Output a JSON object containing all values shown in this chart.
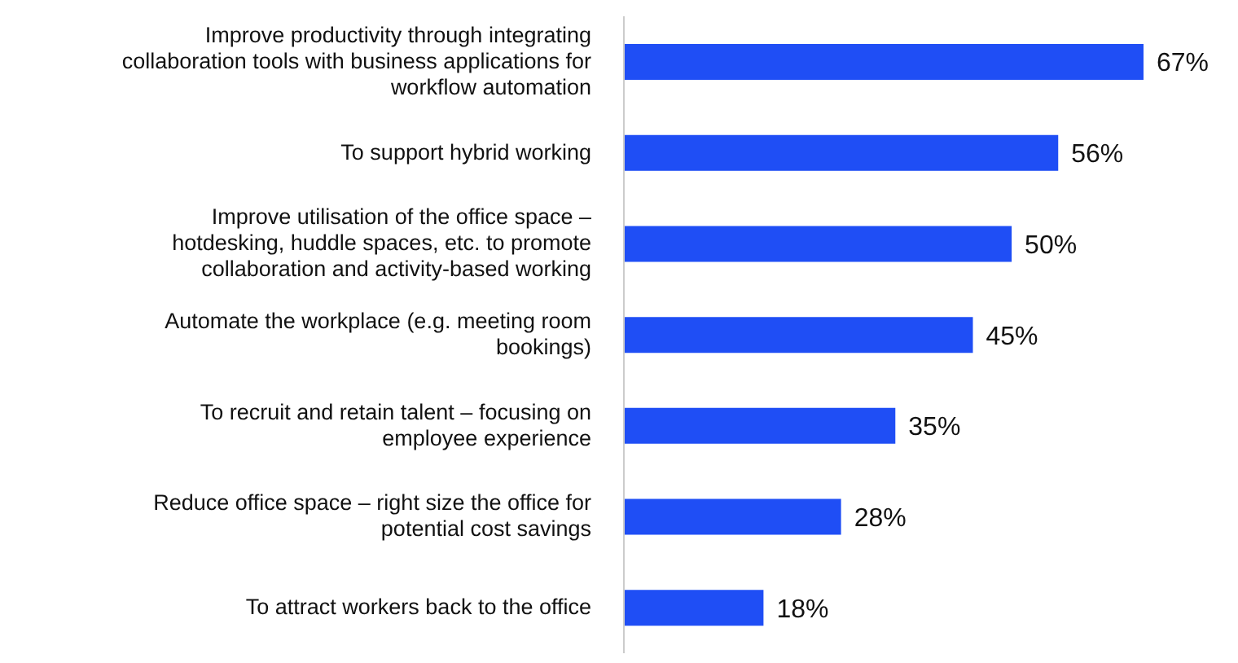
{
  "chart_data": {
    "type": "bar",
    "orientation": "horizontal",
    "categories": [
      "Improve productivity through integrating collaboration tools with business applications for workflow automation",
      "To support hybrid working",
      "Improve utilisation of the office space – hotdesking, huddle spaces, etc. to promote collaboration and activity-based working",
      "Automate the workplace (e.g. meeting room bookings)",
      "To recruit and retain talent – focusing on employee experience",
      "Reduce office space – right size the office for potential cost savings",
      "To attract workers back to the office"
    ],
    "values": [
      67,
      56,
      50,
      45,
      35,
      28,
      18
    ],
    "value_labels": [
      "67%",
      "56%",
      "50%",
      "45%",
      "35%",
      "28%",
      "18%"
    ],
    "color": "#1f4ef5"
  }
}
